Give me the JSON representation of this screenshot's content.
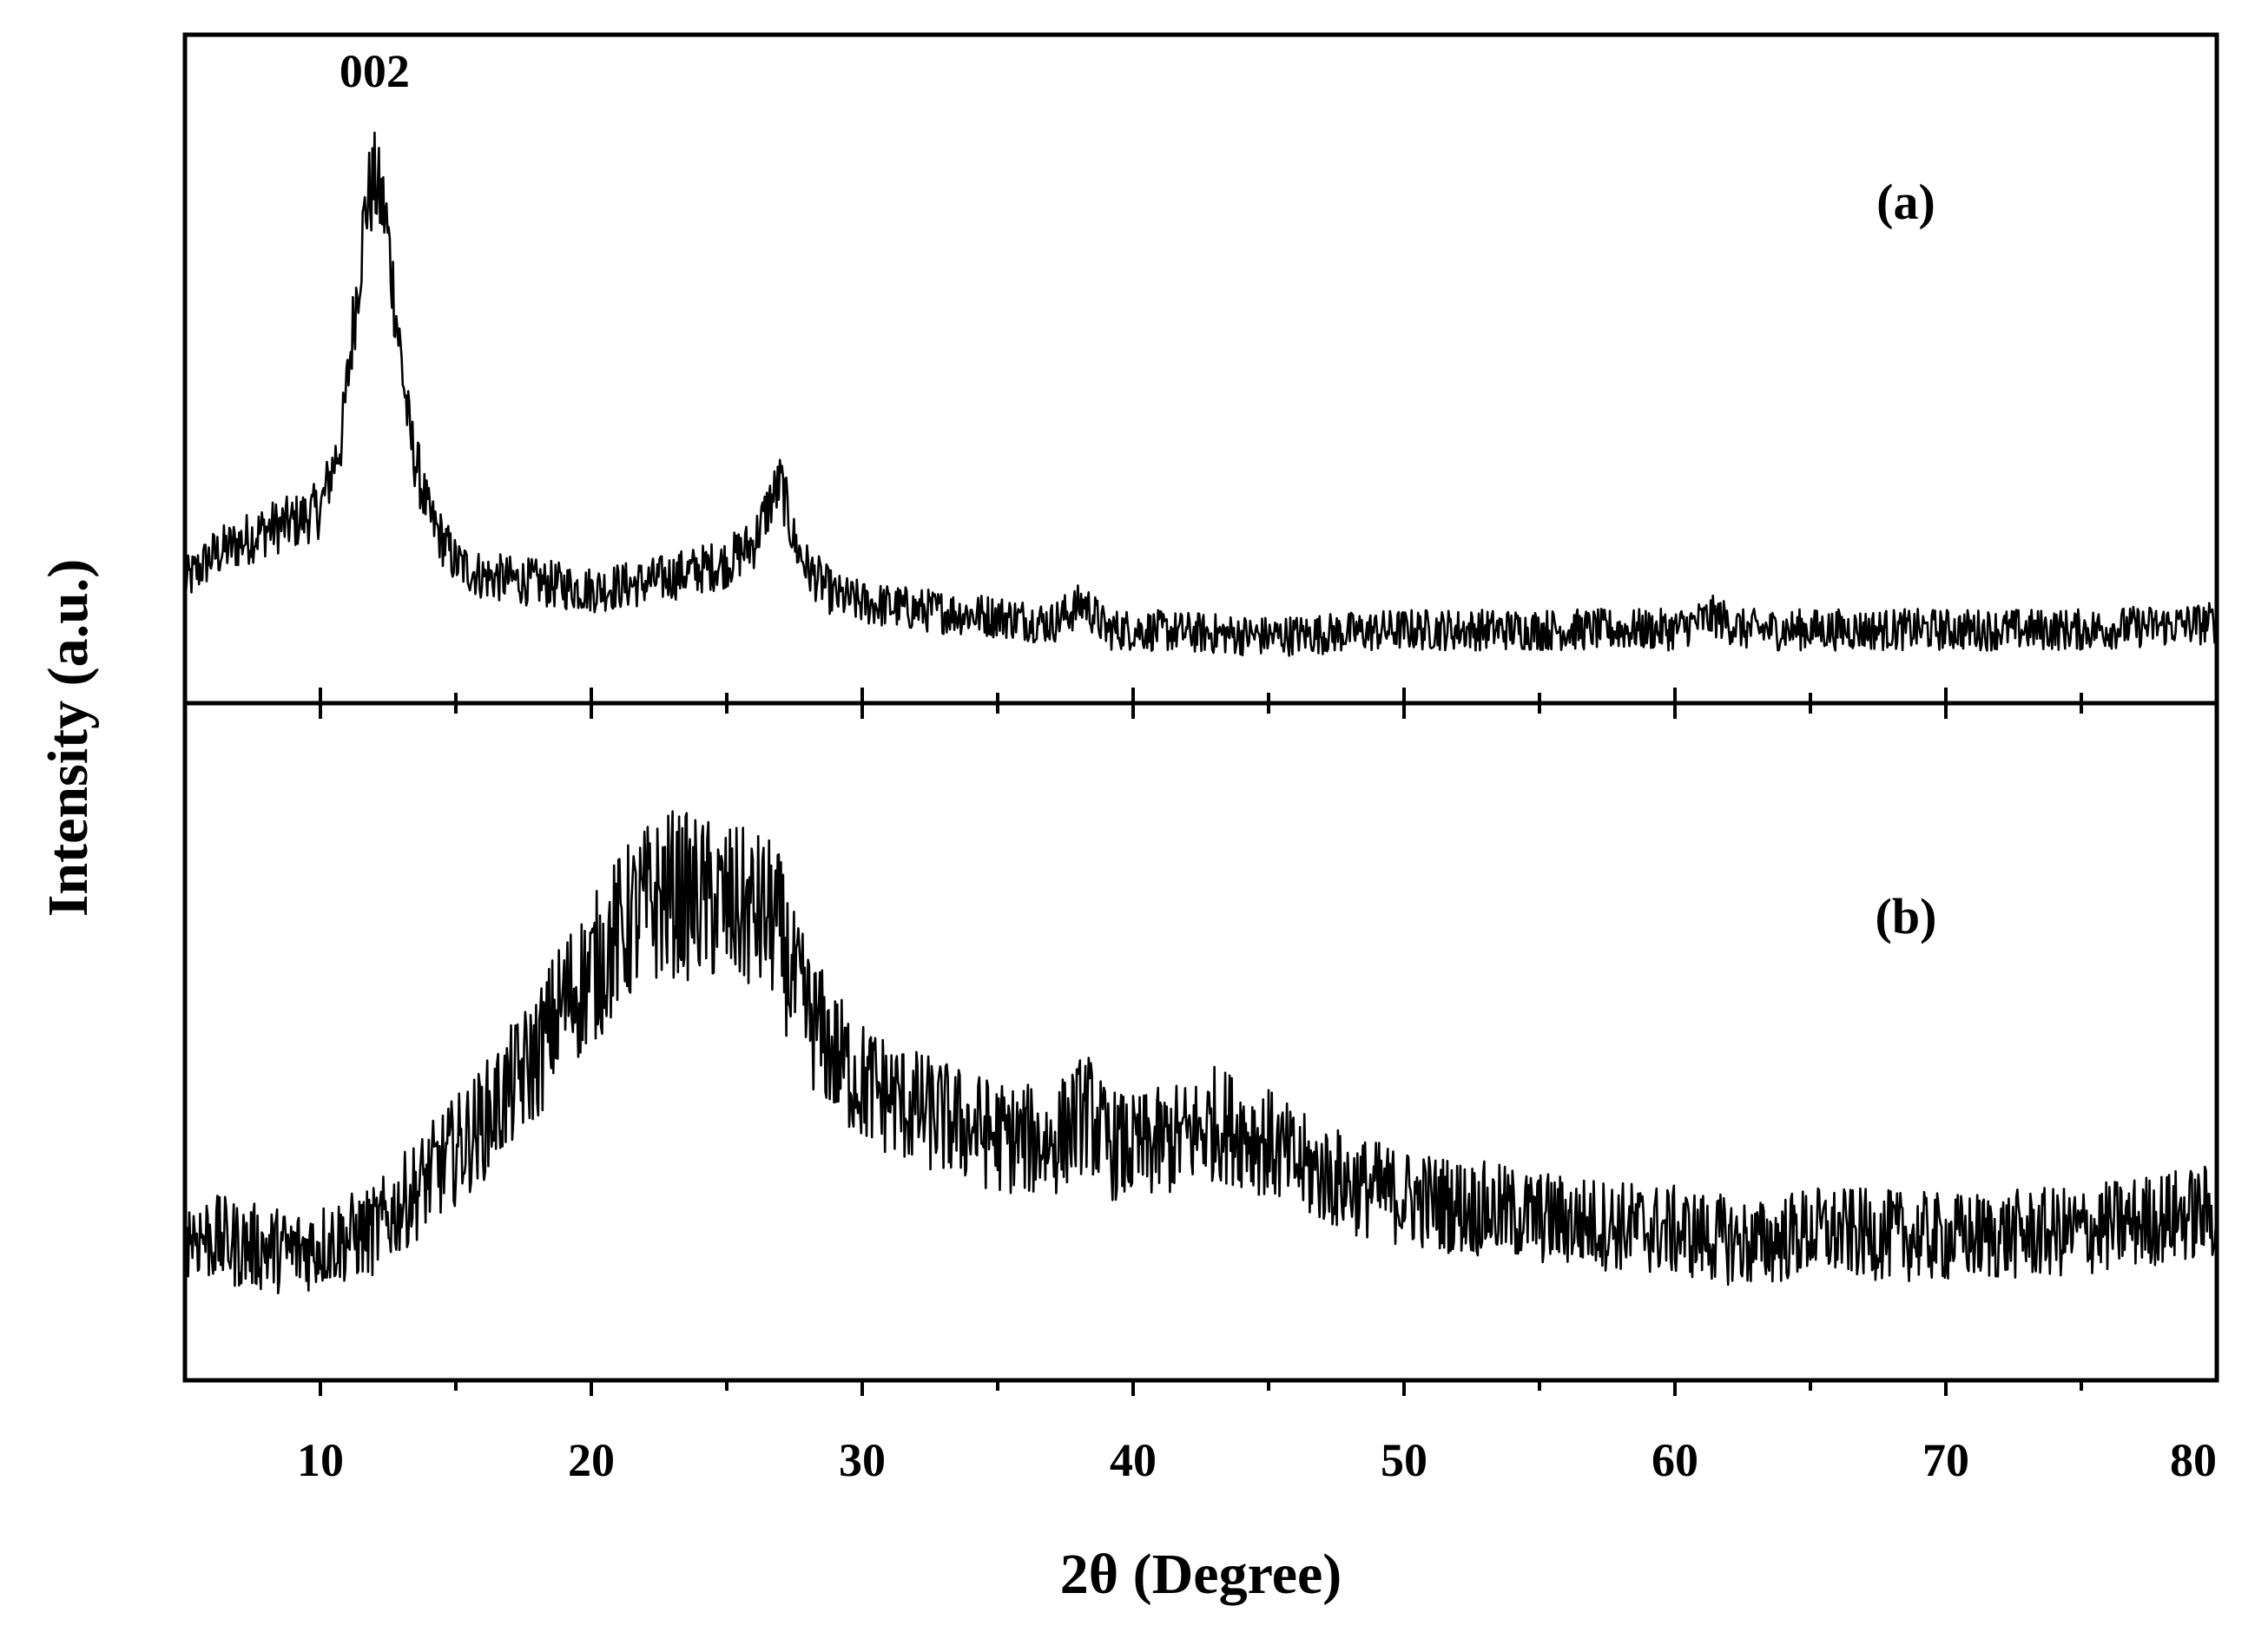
{
  "chart_data": [
    {
      "type": "line",
      "panel_label": "(a)",
      "peak_annotation": {
        "text": "002",
        "x": 12.0
      },
      "xlim": [
        5,
        80
      ],
      "xlabel": "2θ (Degree)",
      "ylabel": "Intensity (a.u.)",
      "y_units": "arbitrary",
      "ylim": [
        0,
        100
      ],
      "noise": 4,
      "x": [
        5,
        6,
        7,
        8,
        9,
        10,
        10.8,
        11.3,
        11.7,
        12.0,
        12.4,
        12.8,
        13.3,
        14,
        15,
        16,
        18,
        20,
        22,
        24,
        25,
        26,
        26.6,
        27,
        27.5,
        28,
        29,
        30,
        32,
        35,
        37,
        38.2,
        39,
        40,
        45,
        50,
        55,
        60,
        61.5,
        62.5,
        65,
        70,
        75,
        80
      ],
      "y": [
        18,
        22,
        24,
        26,
        27,
        29,
        40,
        60,
        75,
        78,
        73,
        58,
        40,
        28,
        21,
        19,
        18,
        17,
        18,
        20,
        21,
        24,
        30,
        33,
        24,
        20,
        16,
        15,
        14,
        13,
        12,
        15,
        11,
        11,
        10,
        11,
        11,
        11,
        13,
        11,
        11,
        11,
        11,
        12
      ]
    },
    {
      "type": "line",
      "panel_label": "(b)",
      "xlim": [
        5,
        80
      ],
      "ylim": [
        0,
        100
      ],
      "noise": 7,
      "x": [
        5,
        7,
        9,
        10,
        12,
        14,
        16,
        18,
        19,
        20,
        21,
        22,
        23,
        24,
        25,
        26,
        26.8,
        27.5,
        28,
        29,
        30,
        32,
        35,
        37,
        38.3,
        39,
        40,
        42,
        43,
        44,
        45,
        46,
        48,
        50,
        55,
        60,
        63,
        65,
        70,
        75,
        78,
        80
      ],
      "y": [
        22,
        20,
        19,
        20,
        22,
        30,
        38,
        48,
        56,
        60,
        66,
        70,
        72,
        71,
        70,
        69,
        68,
        58,
        54,
        48,
        44,
        40,
        36,
        35,
        40,
        35,
        34,
        36,
        38,
        37,
        35,
        32,
        29,
        27,
        24,
        22,
        20,
        22,
        21,
        22,
        24,
        25
      ]
    }
  ],
  "axis": {
    "xticks": [
      10,
      20,
      30,
      40,
      50,
      60,
      70,
      80
    ],
    "xtick_labels": [
      "10",
      "20",
      "30",
      "40",
      "50",
      "60",
      "70",
      "80"
    ],
    "minor_xtick_step": 5
  },
  "colors": {
    "line": "#000000",
    "frame": "#000000",
    "background": "#ffffff"
  }
}
